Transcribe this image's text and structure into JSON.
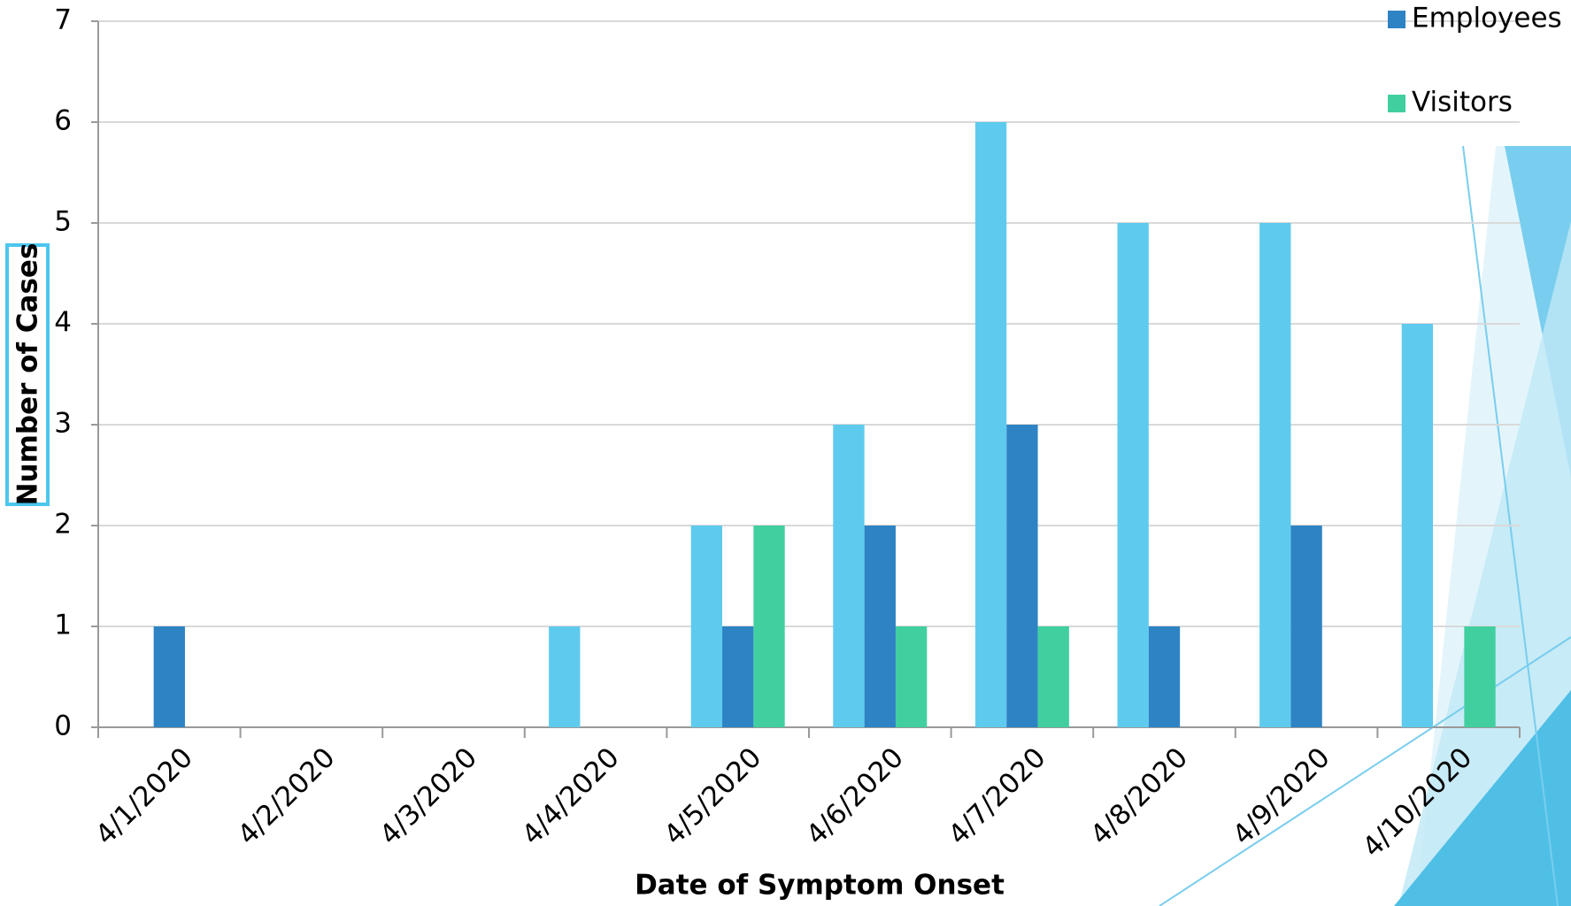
{
  "chart_data": {
    "type": "bar",
    "x_label": "Date of Symptom Onset",
    "y_label": "Number of Cases",
    "categories": [
      "4/1/2020",
      "4/2/2020",
      "4/3/2020",
      "4/4/2020",
      "4/5/2020",
      "4/6/2020",
      "4/7/2020",
      "4/8/2020",
      "4/9/2020",
      "4/10/2020"
    ],
    "series": [
      {
        "color": "#5ecbee",
        "values": [
          0,
          0,
          0,
          1,
          2,
          3,
          6,
          5,
          5,
          4
        ]
      },
      {
        "name": "Employees",
        "color": "#2e83c4",
        "values": [
          1,
          0,
          0,
          0,
          1,
          2,
          3,
          1,
          2,
          0
        ]
      },
      {
        "name": "Visitors",
        "color": "#41cfa0",
        "values": [
          0,
          0,
          0,
          0,
          2,
          1,
          1,
          0,
          0,
          1
        ]
      }
    ],
    "ylim": [
      0,
      7
    ],
    "yticks": [
      0,
      1,
      2,
      3,
      4,
      5,
      6,
      7
    ],
    "grid": true,
    "legend": "top-right"
  }
}
